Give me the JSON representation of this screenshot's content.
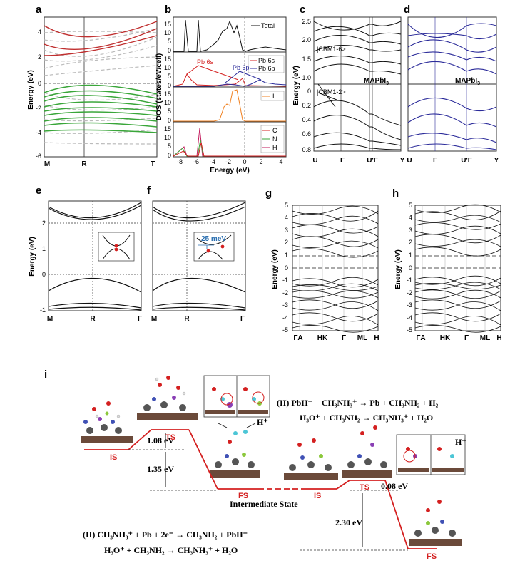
{
  "panels": {
    "a": {
      "label": "a",
      "ylabel": "Energy (eV)",
      "yticks": [
        "4",
        "2",
        "0",
        "-2",
        "-4",
        "-6"
      ],
      "kpoints": [
        "M",
        "R",
        "T"
      ]
    },
    "b": {
      "label": "b",
      "ylabel": "DOS (states/eV/cell)",
      "xlabel": "Energy (eV)",
      "xticks": [
        "-8",
        "-6",
        "-4",
        "-2",
        "0",
        "2",
        "4"
      ],
      "sub_yticks": [
        [
          "15",
          "10",
          "5",
          "0"
        ],
        [
          "15",
          "10",
          "5",
          "0"
        ],
        [
          "15",
          "10",
          "5",
          "0"
        ],
        [
          "15",
          "10",
          "5",
          "0"
        ]
      ],
      "legend_total": "Total",
      "legend_pb6s": "Pb 6s",
      "legend_pb6p": "Pb 6p",
      "legend_i": "I",
      "legend_c": "C",
      "legend_n": "N",
      "legend_h": "H",
      "ann_pb6s": "Pb 6s",
      "ann_pb6p": "Pb 6p"
    },
    "c": {
      "label": "c",
      "ylabel": "Energy (eV)",
      "yticks_top": [
        "2.5",
        "2.0",
        "1.5",
        "1.0"
      ],
      "yticks_bottom": [
        "0",
        "0.2",
        "0.4",
        "0.6",
        "0.8"
      ],
      "kpoints": [
        "U",
        "Γ",
        "U'Γ",
        "Y"
      ],
      "cbm1": "|CBM1-6>",
      "cbm2": "|CBM1-2>",
      "material": "MAPbI",
      "material_sub": "3"
    },
    "d": {
      "label": "d",
      "kpoints": [
        "U",
        "Γ",
        "U'Γ",
        "Y"
      ],
      "material": "MAPbI",
      "material_sub": "3"
    },
    "e": {
      "label": "e",
      "ylabel": "Energy (eV)",
      "yticks": [
        "2",
        "1",
        "0",
        "-1"
      ],
      "kpoints": [
        "M",
        "R",
        "Γ"
      ]
    },
    "f": {
      "label": "f",
      "kpoints": [
        "M",
        "R",
        "Γ"
      ],
      "splitting": "25 meV"
    },
    "g": {
      "label": "g",
      "ylabel": "Energy (eV)",
      "yticks": [
        "5",
        "4",
        "3",
        "2",
        "1",
        "0",
        "-1",
        "-2",
        "-3",
        "-4",
        "-5"
      ],
      "kpoints": [
        "ΓA",
        "HK",
        "Γ",
        "ML",
        "H"
      ]
    },
    "h": {
      "label": "h",
      "ylabel": "Energy (eV)",
      "yticks": [
        "5",
        "4",
        "3",
        "2",
        "1",
        "0",
        "-1",
        "-2",
        "-3",
        "-4",
        "-5"
      ],
      "kpoints": [
        "ΓA",
        "HK",
        "Γ",
        "ML",
        "H"
      ]
    },
    "i": {
      "label": "i",
      "states": {
        "is1": "IS",
        "ts1": "TS",
        "fs1": "FS",
        "is2": "IS",
        "ts2": "TS",
        "fs2": "FS"
      },
      "energies": {
        "e1": "1.08 eV",
        "e2": "1.35 eV",
        "e3": "0.08 eV",
        "e4": "2.30 eV"
      },
      "intermediate": "Intermediate State",
      "hplus": "H⁺",
      "eq_top1": "(II) PbH⁻ + CH₃NH₃⁺ → Pb + CH₃NH₂ + H₂",
      "eq_top2": "H₃O⁺ + CH₃NH₂ → CH₃NH₃⁺ + H₂O",
      "eq_bot1": "(II) CH₃NH₃⁺ + Pb + 2e⁻ → CH₃NH₂ + PbH⁻",
      "eq_bot2": "H₃O⁺ + CH₃NH₂ → CH₃NH₃⁺ + H₂O"
    }
  },
  "colors": {
    "red": "#d42020",
    "green": "#3aa63a",
    "blue": "#2b2b9a",
    "orange": "#f08020",
    "gray": "#bbbbbb",
    "black": "#111111"
  }
}
